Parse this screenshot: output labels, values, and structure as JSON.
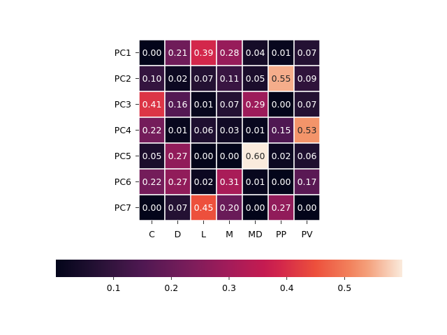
{
  "chart_data": {
    "type": "heatmap",
    "rows": [
      "PC1",
      "PC2",
      "PC3",
      "PC4",
      "PC5",
      "PC6",
      "PC7"
    ],
    "columns": [
      "C",
      "D",
      "L",
      "M",
      "MD",
      "PP",
      "PV"
    ],
    "values": [
      [
        0.0,
        0.21,
        0.39,
        0.28,
        0.04,
        0.01,
        0.07
      ],
      [
        0.1,
        0.02,
        0.07,
        0.11,
        0.05,
        0.55,
        0.09
      ],
      [
        0.41,
        0.16,
        0.01,
        0.07,
        0.29,
        0.0,
        0.07
      ],
      [
        0.22,
        0.01,
        0.06,
        0.03,
        0.01,
        0.15,
        0.53
      ],
      [
        0.05,
        0.27,
        0.0,
        0.0,
        0.6,
        0.02,
        0.06
      ],
      [
        0.22,
        0.27,
        0.02,
        0.31,
        0.01,
        0.0,
        0.17
      ],
      [
        0.0,
        0.07,
        0.45,
        0.2,
        0.0,
        0.27,
        0.0
      ]
    ],
    "value_format": "0.00",
    "colormap": "rocket",
    "color_range": [
      0.0,
      0.6
    ],
    "colorbar": {
      "orientation": "horizontal",
      "placement": "bottom",
      "ticks": [
        0.1,
        0.2,
        0.3,
        0.4,
        0.5
      ]
    },
    "cell_border_color": "#ffffff",
    "dark_text_color": "#262626",
    "light_text_color": "#ffffff"
  }
}
